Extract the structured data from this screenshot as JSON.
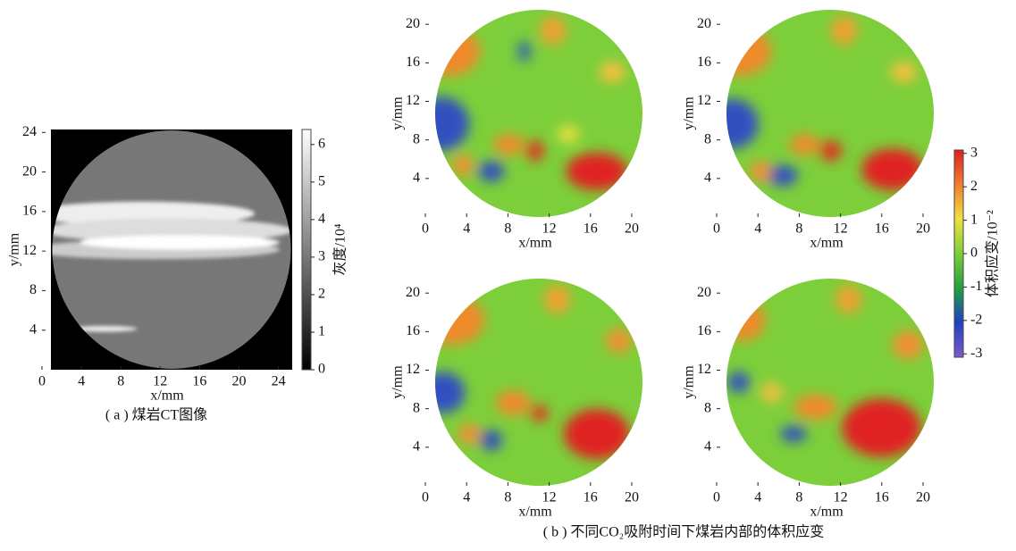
{
  "chart_data": [
    {
      "type": "image",
      "xlabel": "x/mm",
      "ylabel": "y/mm",
      "xlim": [
        0,
        25.4
      ],
      "ylim": [
        0,
        24.3
      ],
      "xticks": [
        0,
        4,
        8,
        12,
        16,
        20,
        24
      ],
      "yticks": [
        4,
        8,
        12,
        16,
        20,
        24
      ],
      "colorbar": {
        "label": "灰度/10⁴",
        "lim": [
          0,
          6.4
        ],
        "ticks": [
          0,
          1,
          2,
          3,
          4,
          5,
          6
        ]
      },
      "caption": "( a ) 煤岩CT图像"
    },
    {
      "type": "heatmap",
      "xlabel": "x/mm",
      "ylabel": "y/mm",
      "xlim": [
        0,
        21.3
      ],
      "ylim": [
        0,
        21.5
      ],
      "xticks": [
        0,
        4,
        8,
        12,
        16,
        20
      ],
      "yticks": [
        4,
        8,
        12,
        16,
        20
      ]
    },
    {
      "type": "heatmap",
      "xlabel": "x/mm",
      "ylabel": "y/mm",
      "xlim": [
        0,
        21.3
      ],
      "ylim": [
        0,
        21.5
      ],
      "xticks": [
        0,
        4,
        8,
        12,
        16,
        20
      ],
      "yticks": [
        4,
        8,
        12,
        16,
        20
      ]
    },
    {
      "type": "heatmap",
      "xlabel": "x/mm",
      "ylabel": "y/mm",
      "xlim": [
        0,
        21.3
      ],
      "ylim": [
        0,
        21.5
      ],
      "xticks": [
        0,
        4,
        8,
        12,
        16,
        20
      ],
      "yticks": [
        4,
        8,
        12,
        16,
        20
      ]
    },
    {
      "type": "heatmap",
      "xlabel": "x/mm",
      "ylabel": "y/mm",
      "xlim": [
        0,
        21.3
      ],
      "ylim": [
        0,
        21.5
      ],
      "xticks": [
        0,
        4,
        8,
        12,
        16,
        20
      ],
      "yticks": [
        4,
        8,
        12,
        16,
        20
      ]
    }
  ],
  "figure_b": {
    "colorbar": {
      "label": "体积应变/10⁻²",
      "lim": [
        -3.1,
        3.1
      ],
      "ticks": [
        3,
        2,
        1,
        0,
        -1,
        -2,
        -3
      ]
    },
    "caption": "( b ) 不同CO₂吸附时间下煤岩内部的体积应变"
  }
}
